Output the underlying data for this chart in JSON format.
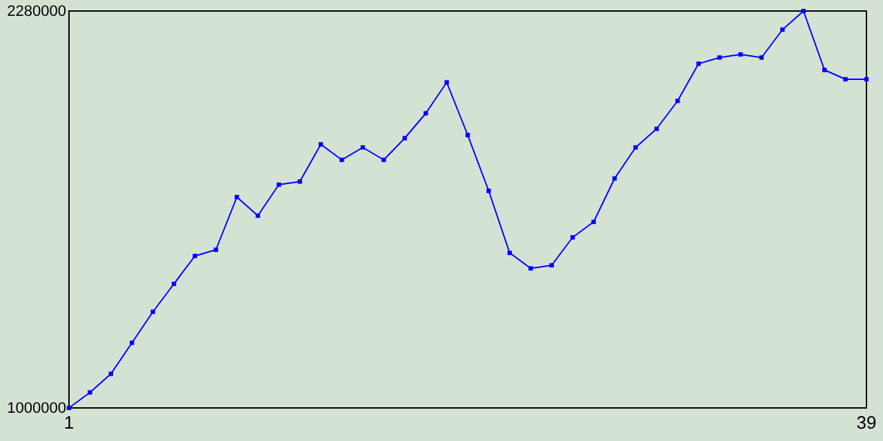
{
  "chart_data": {
    "type": "line",
    "x": [
      1,
      2,
      3,
      4,
      5,
      6,
      7,
      8,
      9,
      10,
      11,
      12,
      13,
      14,
      15,
      16,
      17,
      18,
      19,
      20,
      21,
      22,
      23,
      24,
      25,
      26,
      27,
      28,
      29,
      30,
      31,
      32,
      33,
      34,
      35,
      36,
      37,
      38,
      39
    ],
    "series": [
      {
        "color": "#0000ff",
        "values": [
          1000000,
          1050000,
          1110000,
          1210000,
          1310000,
          1400000,
          1490000,
          1510000,
          1680000,
          1620000,
          1720000,
          1730000,
          1850000,
          1800000,
          1840000,
          1800000,
          1870000,
          1950000,
          2050000,
          1880000,
          1700000,
          1500000,
          1450000,
          1460000,
          1550000,
          1600000,
          1740000,
          1840000,
          1900000,
          1990000,
          2110000,
          2130000,
          2140000,
          2130000,
          2220000,
          2280000,
          2090000,
          2060000,
          2060000
        ]
      }
    ],
    "xlim": [
      1,
      39
    ],
    "xticks": [
      1,
      39
    ],
    "ylim": [
      1000000,
      2280000
    ],
    "yticks": [
      1000000,
      2280000
    ],
    "grid": false,
    "marker": "square",
    "line_style": "solid"
  }
}
